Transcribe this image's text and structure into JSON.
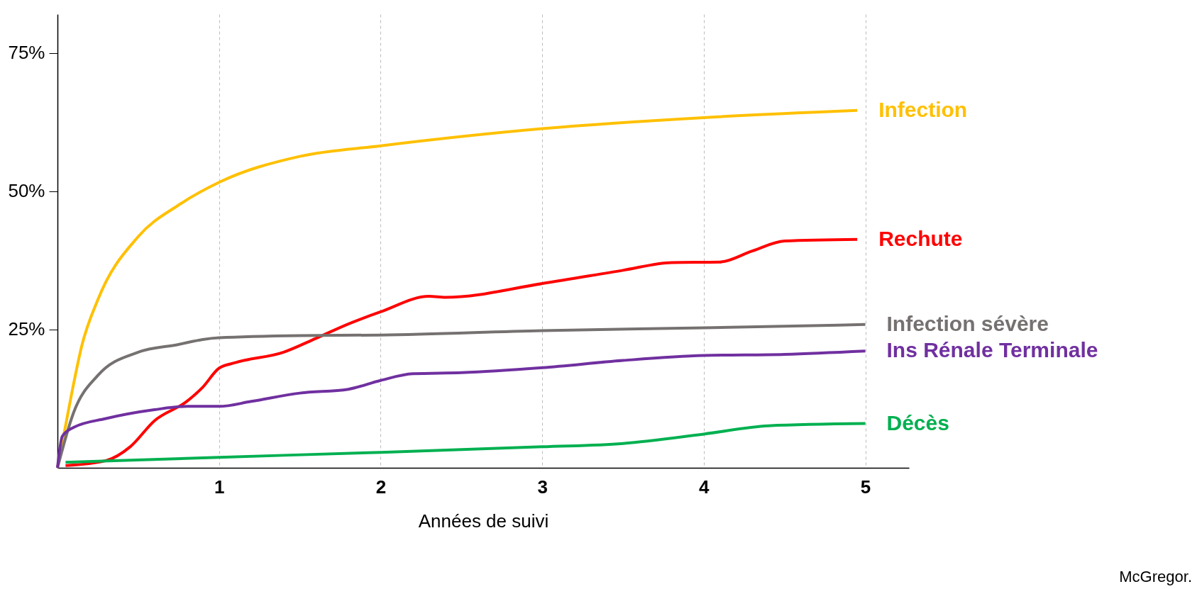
{
  "chart_data": {
    "type": "line",
    "xlabel": "Années de suivi",
    "xlim": [
      0,
      5.27
    ],
    "ylim": [
      0,
      82
    ],
    "xticks": [
      1,
      2,
      3,
      4,
      5
    ],
    "yticks": [
      {
        "value": 25,
        "label": "25%"
      },
      {
        "value": 50,
        "label": "50%"
      },
      {
        "value": 75,
        "label": "75%"
      }
    ],
    "grid": "x",
    "legend": false,
    "marker": "none",
    "line_style": "solid",
    "annotations": [
      "McGregor."
    ],
    "series": [
      {
        "name": "Infection",
        "color": "#ffc000",
        "x": [
          0,
          0.05,
          0.1,
          0.15,
          0.25,
          0.5,
          0.75,
          1,
          1.5,
          2,
          3,
          4,
          4.95
        ],
        "values": [
          0,
          7.6,
          15.2,
          22,
          30.4,
          41.8,
          47.5,
          51.6,
          56.3,
          58.2,
          61.3,
          63.3,
          64.6
        ]
      },
      {
        "name": "Rechute",
        "color": "#ff0000",
        "x": [
          0.05,
          0.3,
          0.45,
          0.6,
          0.8,
          0.9,
          1,
          1.1,
          1.4,
          1.6,
          1.8,
          2,
          2.3,
          2.4,
          3,
          3.5,
          3.8,
          4.1,
          4.3,
          4.5,
          4.95
        ],
        "values": [
          0.4,
          1.3,
          3.8,
          8.5,
          12,
          14.6,
          18,
          19,
          20.9,
          23.4,
          26,
          28.2,
          31,
          30.8,
          33.3,
          35.7,
          37.1,
          37.2,
          39.2,
          41,
          41.3
        ]
      },
      {
        "name": "Infection sévère",
        "color": "#767171",
        "x": [
          0,
          0.1,
          0.25,
          0.5,
          0.75,
          0.9,
          1,
          1.5,
          2,
          3,
          4,
          5
        ],
        "values": [
          0,
          10,
          16.7,
          20.9,
          22.3,
          23.2,
          23.5,
          23.9,
          24,
          24.8,
          25.3,
          25.9
        ]
      },
      {
        "name": "Ins Rénale Terminale",
        "color": "#7030a0",
        "x": [
          0,
          0.03,
          0.1,
          0.3,
          0.6,
          0.8,
          1,
          1.2,
          1.5,
          1.8,
          2,
          2.2,
          2.5,
          3,
          3.5,
          4,
          4.5,
          5
        ],
        "values": [
          0,
          5.7,
          7.3,
          8.9,
          10.5,
          11.1,
          11.1,
          12,
          13.5,
          14.2,
          15.8,
          17,
          17.2,
          18.1,
          19.4,
          20.3,
          20.5,
          21.1
        ]
      },
      {
        "name": "Décès",
        "color": "#00b050",
        "x": [
          0.05,
          1,
          2,
          3,
          3.5,
          4,
          4.4,
          5
        ],
        "values": [
          1,
          1.9,
          2.8,
          3.8,
          4.4,
          6.1,
          7.6,
          8
        ]
      }
    ]
  }
}
